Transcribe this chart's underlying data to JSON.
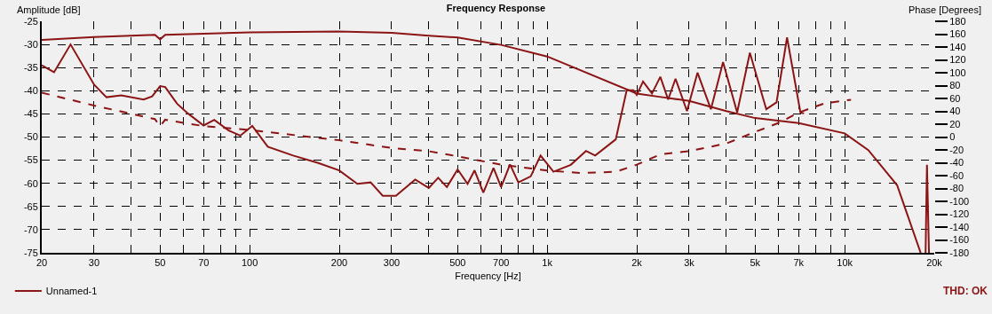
{
  "chart_data": {
    "type": "line",
    "title": "Frequency Response",
    "xlabel": "Frequency [Hz]",
    "ylabel": "Amplitude [dB]",
    "y2label": "Phase [Degrees]",
    "log": "x",
    "grid": true,
    "legend": "bottom left",
    "xlim": [
      20,
      20000
    ],
    "xticks": [
      20,
      30,
      {
        "value": 40,
        "label": null
      },
      50,
      {
        "value": 60,
        "label": null
      },
      70,
      {
        "value": 80,
        "label": null
      },
      {
        "value": 90,
        "label": null
      },
      100,
      200,
      300,
      {
        "value": 400,
        "label": null
      },
      500,
      {
        "value": 600,
        "label": null
      },
      700,
      {
        "value": 800,
        "label": null
      },
      {
        "value": 900,
        "label": null
      },
      {
        "value": 1000,
        "label": "1k"
      },
      {
        "value": 2000,
        "label": "2k"
      },
      {
        "value": 3000,
        "label": "3k"
      },
      {
        "value": 4000,
        "label": null
      },
      {
        "value": 5000,
        "label": "5k"
      },
      {
        "value": 6000,
        "label": null
      },
      {
        "value": 7000,
        "label": "7k"
      },
      {
        "value": 8000,
        "label": null
      },
      {
        "value": 9000,
        "label": null
      },
      {
        "value": 10000,
        "label": "10k"
      },
      {
        "value": 20000,
        "label": "20k"
      }
    ],
    "ylim": [
      -75,
      -25
    ],
    "yticks": [
      -75,
      -70,
      -65,
      -60,
      -55,
      -50,
      -45,
      -40,
      -35,
      -30,
      -25
    ],
    "y2lim": [
      -180,
      180
    ],
    "y2ticks": [
      -180,
      -160,
      -140,
      -120,
      -100,
      -80,
      -60,
      -40,
      -20,
      0,
      20,
      40,
      60,
      80,
      100,
      120,
      140,
      160,
      180
    ],
    "annotations": [
      "THD: OK"
    ],
    "series": [
      {
        "name": "Unnamed-1",
        "color": "#8b1414",
        "line_style": "solid",
        "x": [
          20,
          30,
          48,
          50,
          52,
          100,
          200,
          300,
          400,
          500,
          700,
          1000,
          2000,
          2500,
          3000,
          4000,
          5000,
          7000,
          10000,
          12000,
          15000,
          18000
        ],
        "values": [
          -29,
          -28.4,
          -27.9,
          -28.9,
          -27.9,
          -27.4,
          -27.2,
          -27.5,
          -28.1,
          -28.5,
          -30.1,
          -32.6,
          -40.6,
          -41.5,
          -42.2,
          -44.4,
          -45.9,
          -47,
          -49.2,
          -52.8,
          -60.4,
          -75
        ]
      },
      {
        "color": "#8b1414",
        "line_style": "solid",
        "x": [
          20,
          22,
          25,
          30,
          33,
          37,
          44,
          47,
          50,
          52,
          57,
          62,
          70,
          76,
          85,
          93,
          102,
          115,
          140,
          170,
          200,
          230,
          255,
          280,
          310,
          360,
          400,
          430,
          460,
          500,
          540,
          570,
          610,
          660,
          700,
          750,
          800,
          880,
          950,
          1050,
          1200,
          1350,
          1450,
          1700,
          1850,
          1950,
          2000,
          2100,
          2250,
          2400,
          2550,
          2700,
          2950,
          3200,
          3550,
          3900,
          4350,
          4800,
          5450,
          5900,
          6400,
          7100,
          7300,
          10000,
          18700,
          18900,
          19200
        ],
        "values": [
          -34.5,
          -36,
          -30,
          -38.7,
          -41.4,
          -41,
          -41.9,
          -41.2,
          -39,
          -39.2,
          -42.8,
          -44.9,
          -47.5,
          -46.3,
          -48.6,
          -49.7,
          -47.6,
          -52.1,
          -54,
          -55.6,
          -57.2,
          -60.1,
          -59.8,
          -62.7,
          -62.7,
          -59.2,
          -61,
          -58.8,
          -60.8,
          -57,
          -60.1,
          -57.2,
          -62,
          -56.7,
          -60.8,
          -55.9,
          -59.8,
          -58.5,
          -54,
          -57.5,
          -56,
          -53,
          -54,
          -50.5,
          -39.9,
          -39.9,
          -40.9,
          -38,
          -40.6,
          -37,
          -41.9,
          -37.4,
          -44.4,
          -36.1,
          -44,
          -33.8,
          -44.7,
          -31.8,
          -44,
          -42.5,
          -28.5,
          -44.7,
          -44.9,
          null,
          -75,
          -56,
          -75
        ]
      },
      {
        "color": "#8b1414",
        "line_style": "dashed",
        "axis": "y2",
        "x": [
          20,
          30,
          48,
          50,
          52,
          70,
          100,
          200,
          300,
          400,
          500,
          700,
          1000,
          1300,
          1700,
          2000,
          2400,
          3000,
          4000,
          5000,
          6000,
          7000,
          8500,
          10500
        ],
        "values": [
          69,
          49,
          28,
          17,
          27,
          17,
          11,
          -5,
          -17,
          -22,
          -30,
          -43,
          -52,
          -56,
          -54,
          -43,
          -27,
          -22,
          -10,
          8,
          22,
          38,
          52,
          58
        ]
      }
    ]
  }
}
